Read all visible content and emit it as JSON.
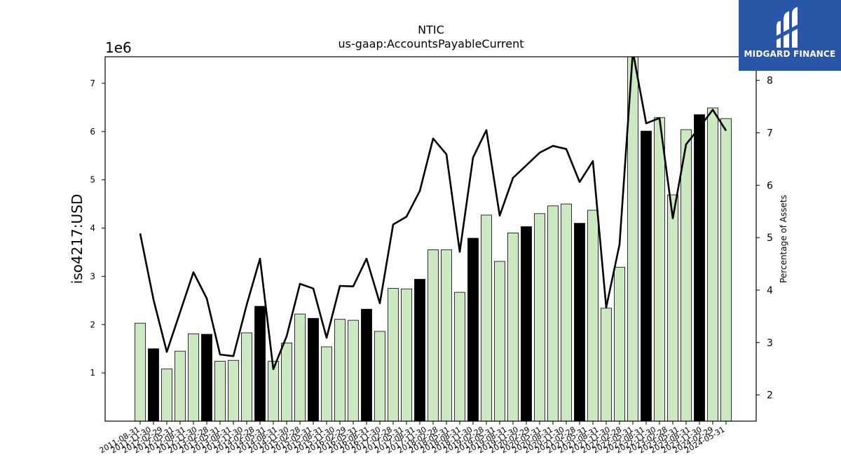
{
  "chart_data": {
    "type": "bar",
    "title": "NTIC",
    "subtitle": "us-gaap:AccountsPayableCurrent",
    "ylabel": "iso4217:USD",
    "y_exponent_label": "1e6",
    "y2label": "Percentage of Assets",
    "ylim": [
      0,
      7550000
    ],
    "y2lim": [
      1.5,
      8.45
    ],
    "yticks": [
      1,
      2,
      3,
      4,
      5,
      6,
      7
    ],
    "y2ticks": [
      2,
      3,
      4,
      5,
      6,
      7,
      8
    ],
    "grid": false,
    "colors": {
      "annual_bar": "#000000",
      "quarter_bar": "#cce9c3",
      "line": "#000000"
    },
    "categories": [
      "2011-08-31",
      "2011-11-30",
      "2012-02-29",
      "2012-05-31",
      "2012-08-31",
      "2012-11-30",
      "2013-02-28",
      "2013-05-31",
      "2013-08-31",
      "2013-11-30",
      "2014-02-28",
      "2014-05-31",
      "2014-08-31",
      "2014-11-30",
      "2015-02-28",
      "2015-05-31",
      "2015-08-31",
      "2015-11-30",
      "2016-02-29",
      "2016-05-31",
      "2016-08-31",
      "2016-11-30",
      "2017-02-28",
      "2017-05-31",
      "2017-08-31",
      "2017-11-30",
      "2018-02-28",
      "2018-05-31",
      "2018-08-31",
      "2018-11-30",
      "2019-02-28",
      "2019-05-31",
      "2019-08-31",
      "2019-11-30",
      "2020-02-29",
      "2020-05-31",
      "2020-08-31",
      "2020-11-30",
      "2021-02-28",
      "2021-05-31",
      "2021-08-31",
      "2021-11-30",
      "2022-02-28",
      "2022-05-31",
      "2022-08-31",
      "2022-11-30",
      "2023-02-28",
      "2023-05-31",
      "2023-08-31",
      "2023-11-30",
      "2024-02-29",
      "2024-05-31"
    ],
    "bars": [
      {
        "value": 2030000,
        "annual": false
      },
      {
        "value": 1500000,
        "annual": true
      },
      {
        "value": 1080000,
        "annual": false
      },
      {
        "value": 1450000,
        "annual": false
      },
      {
        "value": 1810000,
        "annual": false
      },
      {
        "value": 1800000,
        "annual": true
      },
      {
        "value": 1240000,
        "annual": false
      },
      {
        "value": 1260000,
        "annual": false
      },
      {
        "value": 1830000,
        "annual": false
      },
      {
        "value": 2380000,
        "annual": true
      },
      {
        "value": 1240000,
        "annual": false
      },
      {
        "value": 1620000,
        "annual": false
      },
      {
        "value": 2220000,
        "annual": false
      },
      {
        "value": 2130000,
        "annual": true
      },
      {
        "value": 1540000,
        "annual": false
      },
      {
        "value": 2110000,
        "annual": false
      },
      {
        "value": 2090000,
        "annual": false
      },
      {
        "value": 2320000,
        "annual": true
      },
      {
        "value": 1860000,
        "annual": false
      },
      {
        "value": 2750000,
        "annual": false
      },
      {
        "value": 2740000,
        "annual": false
      },
      {
        "value": 2940000,
        "annual": true
      },
      {
        "value": 3550000,
        "annual": false
      },
      {
        "value": 3550000,
        "annual": false
      },
      {
        "value": 2670000,
        "annual": false
      },
      {
        "value": 3790000,
        "annual": true
      },
      {
        "value": 4270000,
        "annual": false
      },
      {
        "value": 3310000,
        "annual": false
      },
      {
        "value": 3900000,
        "annual": false
      },
      {
        "value": 4030000,
        "annual": true
      },
      {
        "value": 4300000,
        "annual": false
      },
      {
        "value": 4460000,
        "annual": false
      },
      {
        "value": 4500000,
        "annual": false
      },
      {
        "value": 4100000,
        "annual": true
      },
      {
        "value": 4370000,
        "annual": false
      },
      {
        "value": 2340000,
        "annual": false
      },
      {
        "value": 3190000,
        "annual": false
      },
      {
        "value": 7600000,
        "annual": false
      },
      {
        "value": 6010000,
        "annual": true
      },
      {
        "value": 6290000,
        "annual": false
      },
      {
        "value": 4690000,
        "annual": false
      },
      {
        "value": 6040000,
        "annual": false
      },
      {
        "value": 6350000,
        "annual": true
      },
      {
        "value": 6490000,
        "annual": false
      },
      {
        "value": 6270000,
        "annual": false
      }
    ],
    "bar_slots": [
      0,
      1,
      2,
      3,
      4,
      5,
      6,
      7,
      8,
      9,
      10,
      11,
      12,
      13,
      14,
      15,
      16,
      17,
      18,
      19,
      20,
      21,
      22,
      23,
      24,
      25,
      26,
      27,
      28,
      29,
      30,
      31,
      32,
      33,
      34,
      35,
      36,
      37,
      38,
      39,
      40,
      41,
      42,
      43,
      44
    ],
    "pct_assets": [
      5.08,
      3.82,
      2.82,
      3.58,
      4.34,
      3.84,
      2.77,
      2.74,
      3.72,
      4.6,
      2.49,
      3.12,
      4.12,
      4.03,
      3.09,
      4.08,
      4.07,
      4.6,
      3.75,
      5.25,
      5.4,
      5.89,
      6.89,
      6.59,
      4.73,
      6.53,
      7.05,
      5.42,
      6.14,
      6.38,
      6.62,
      6.75,
      6.69,
      6.06,
      6.46,
      3.67,
      4.87,
      8.55,
      7.18,
      7.28,
      5.37,
      6.78,
      7.1,
      7.44,
      7.04
    ]
  },
  "logo": {
    "brand_text": "MIDGARD FINANCE",
    "icon": "midgard-logo-icon"
  }
}
